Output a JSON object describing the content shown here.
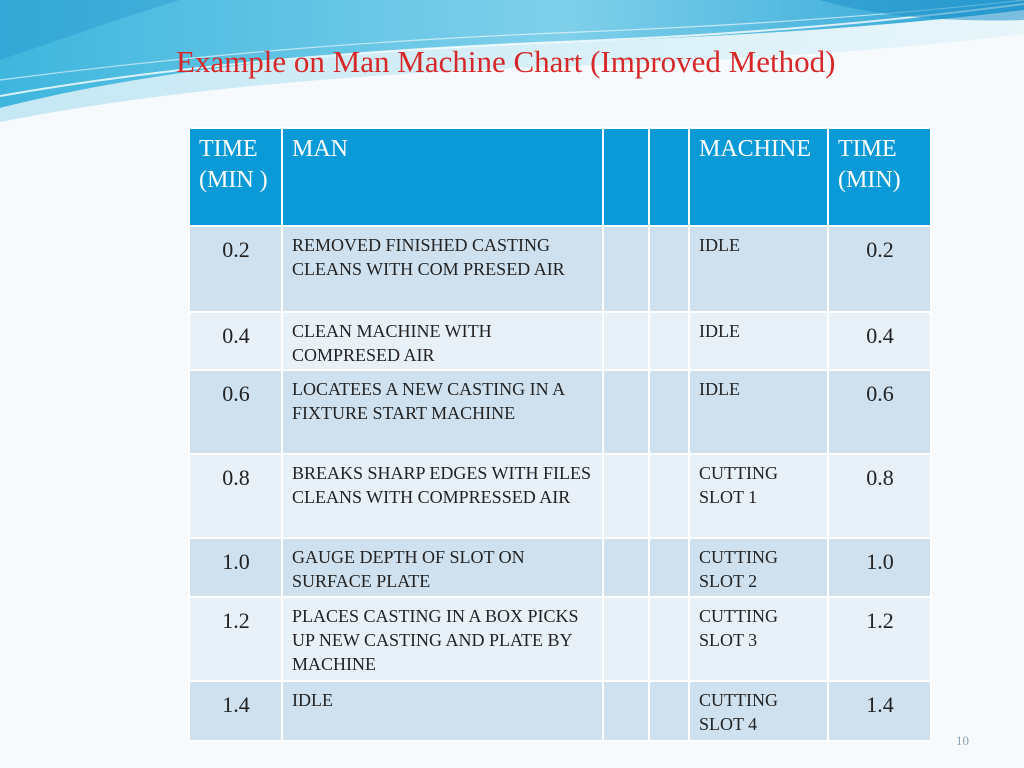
{
  "slide": {
    "title": "Example on Man Machine Chart (Improved Method)",
    "page_number": "10",
    "accent_color": "#d62828",
    "header_color": "#0b9ad8"
  },
  "table": {
    "headers": {
      "time_left": "TIME (MIN )",
      "man": "MAN",
      "blank_1": "",
      "blank_2": "",
      "machine": "MACHINE",
      "time_right": "TIME (MIN)"
    },
    "rows": [
      {
        "time_left": "0.2",
        "man": "REMOVED FINISHED CASTING CLEANS WITH COM PRESED AIR",
        "machine": "IDLE",
        "time_right": "0.2"
      },
      {
        "time_left": "0.4",
        "man": "CLEAN MACHINE WITH COMPRESED AIR",
        "machine": "IDLE",
        "time_right": "0.4"
      },
      {
        "time_left": "0.6",
        "man": "LOCATEES A NEW CASTING IN A FIXTURE START MACHINE",
        "machine": "IDLE",
        "time_right": "0.6"
      },
      {
        "time_left": "0.8",
        "man": "BREAKS SHARP EDGES WITH FILES CLEANS WITH COMPRESSED AIR",
        "machine": "CUTTING SLOT 1",
        "time_right": "0.8"
      },
      {
        "time_left": "1.0",
        "man": "GAUGE DEPTH OF SLOT ON SURFACE PLATE",
        "machine": "CUTTING SLOT 2",
        "time_right": "1.0"
      },
      {
        "time_left": "1.2",
        "man": "PLACES CASTING IN A BOX PICKS UP NEW CASTING AND PLATE BY MACHINE",
        "machine": "CUTTING SLOT 3",
        "time_right": "1.2"
      },
      {
        "time_left": "1.4",
        "man": "IDLE",
        "machine": "CUTTING SLOT 4",
        "time_right": "1.4"
      }
    ]
  }
}
